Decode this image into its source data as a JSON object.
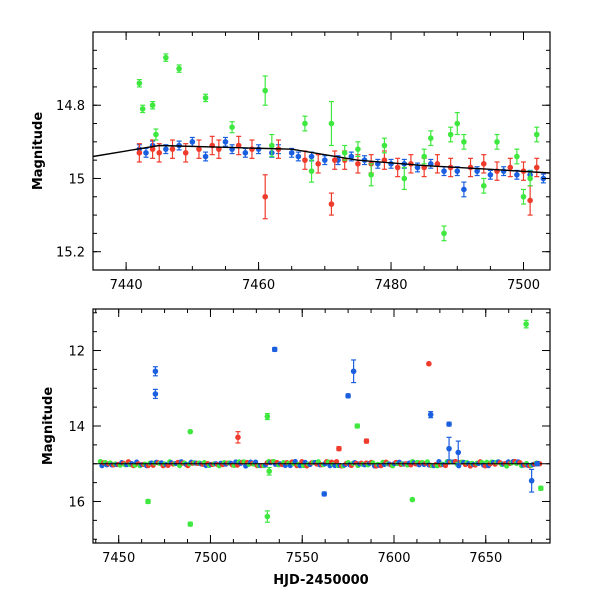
{
  "chart_data": [
    {
      "type": "scatter",
      "panel": "top",
      "xlabel": "",
      "ylabel": "Magnitude",
      "xlim": [
        7435,
        7504
      ],
      "ylim": [
        15.25,
        14.6
      ],
      "y_inverted": true,
      "x_ticks": [
        7440,
        7460,
        7480,
        7500
      ],
      "x_tick_labels": [
        "7440",
        "7460",
        "7480",
        "7500"
      ],
      "y_ticks": [
        14.8,
        15,
        15.2
      ],
      "y_tick_labels": [
        "14.8",
        "15",
        "15.2"
      ],
      "grid": false,
      "trend_line": {
        "x": [
          7435,
          7445,
          7455,
          7465,
          7475,
          7485,
          7495,
          7504
        ],
        "y": [
          14.94,
          14.91,
          14.915,
          14.92,
          14.95,
          14.965,
          14.975,
          14.985
        ]
      },
      "series": [
        {
          "color": "#1a5fe0",
          "points": [
            {
              "x": 7442,
              "y": 14.92,
              "err": 0.012
            },
            {
              "x": 7443,
              "y": 14.93,
              "err": 0.012
            },
            {
              "x": 7444,
              "y": 14.91,
              "err": 0.012
            },
            {
              "x": 7446,
              "y": 14.92,
              "err": 0.012
            },
            {
              "x": 7448,
              "y": 14.91,
              "err": 0.012
            },
            {
              "x": 7450,
              "y": 14.9,
              "err": 0.012
            },
            {
              "x": 7452,
              "y": 14.94,
              "err": 0.012
            },
            {
              "x": 7455,
              "y": 14.9,
              "err": 0.012
            },
            {
              "x": 7456,
              "y": 14.92,
              "err": 0.012
            },
            {
              "x": 7458,
              "y": 14.93,
              "err": 0.012
            },
            {
              "x": 7460,
              "y": 14.92,
              "err": 0.012
            },
            {
              "x": 7462,
              "y": 14.93,
              "err": 0.012
            },
            {
              "x": 7463,
              "y": 14.92,
              "err": 0.012
            },
            {
              "x": 7465,
              "y": 14.93,
              "err": 0.012
            },
            {
              "x": 7466,
              "y": 14.94,
              "err": 0.012
            },
            {
              "x": 7468,
              "y": 14.94,
              "err": 0.012
            },
            {
              "x": 7470,
              "y": 14.95,
              "err": 0.012
            },
            {
              "x": 7472,
              "y": 14.95,
              "err": 0.012
            },
            {
              "x": 7474,
              "y": 14.94,
              "err": 0.012
            },
            {
              "x": 7476,
              "y": 14.95,
              "err": 0.012
            },
            {
              "x": 7478,
              "y": 14.96,
              "err": 0.012
            },
            {
              "x": 7480,
              "y": 14.96,
              "err": 0.012
            },
            {
              "x": 7482,
              "y": 14.96,
              "err": 0.012
            },
            {
              "x": 7484,
              "y": 14.97,
              "err": 0.012
            },
            {
              "x": 7486,
              "y": 14.96,
              "err": 0.012
            },
            {
              "x": 7488,
              "y": 14.98,
              "err": 0.012
            },
            {
              "x": 7490,
              "y": 14.98,
              "err": 0.012
            },
            {
              "x": 7491,
              "y": 15.03,
              "err": 0.02
            },
            {
              "x": 7493,
              "y": 14.98,
              "err": 0.012
            },
            {
              "x": 7495,
              "y": 14.99,
              "err": 0.012
            },
            {
              "x": 7497,
              "y": 14.98,
              "err": 0.012
            },
            {
              "x": 7499,
              "y": 14.99,
              "err": 0.012
            },
            {
              "x": 7501,
              "y": 14.99,
              "err": 0.012
            },
            {
              "x": 7503,
              "y": 15.0,
              "err": 0.012
            }
          ]
        },
        {
          "color": "#ef3b2c",
          "points": [
            {
              "x": 7442,
              "y": 14.93,
              "err": 0.025
            },
            {
              "x": 7444,
              "y": 14.92,
              "err": 0.025
            },
            {
              "x": 7445,
              "y": 14.93,
              "err": 0.025
            },
            {
              "x": 7447,
              "y": 14.92,
              "err": 0.025
            },
            {
              "x": 7449,
              "y": 14.93,
              "err": 0.025
            },
            {
              "x": 7451,
              "y": 14.92,
              "err": 0.025
            },
            {
              "x": 7453,
              "y": 14.91,
              "err": 0.025
            },
            {
              "x": 7454,
              "y": 14.92,
              "err": 0.025
            },
            {
              "x": 7457,
              "y": 14.91,
              "err": 0.025
            },
            {
              "x": 7459,
              "y": 14.92,
              "err": 0.025
            },
            {
              "x": 7461,
              "y": 15.05,
              "err": 0.06
            },
            {
              "x": 7463,
              "y": 14.92,
              "err": 0.025
            },
            {
              "x": 7467,
              "y": 14.95,
              "err": 0.025
            },
            {
              "x": 7469,
              "y": 14.96,
              "err": 0.025
            },
            {
              "x": 7471,
              "y": 15.07,
              "err": 0.03
            },
            {
              "x": 7471.5,
              "y": 14.95,
              "err": 0.025
            },
            {
              "x": 7473,
              "y": 14.95,
              "err": 0.025
            },
            {
              "x": 7475,
              "y": 14.96,
              "err": 0.025
            },
            {
              "x": 7477,
              "y": 14.96,
              "err": 0.025
            },
            {
              "x": 7479,
              "y": 14.95,
              "err": 0.025
            },
            {
              "x": 7481,
              "y": 14.97,
              "err": 0.025
            },
            {
              "x": 7483,
              "y": 14.96,
              "err": 0.025
            },
            {
              "x": 7485,
              "y": 14.97,
              "err": 0.025
            },
            {
              "x": 7487,
              "y": 14.96,
              "err": 0.025
            },
            {
              "x": 7489,
              "y": 14.97,
              "err": 0.025
            },
            {
              "x": 7492,
              "y": 14.97,
              "err": 0.025
            },
            {
              "x": 7494,
              "y": 14.96,
              "err": 0.025
            },
            {
              "x": 7496,
              "y": 14.98,
              "err": 0.025
            },
            {
              "x": 7498,
              "y": 14.97,
              "err": 0.025
            },
            {
              "x": 7500,
              "y": 14.98,
              "err": 0.025
            },
            {
              "x": 7501,
              "y": 15.06,
              "err": 0.04
            },
            {
              "x": 7502,
              "y": 14.97,
              "err": 0.025
            }
          ]
        },
        {
          "color": "#3ee83e",
          "points": [
            {
              "x": 7442,
              "y": 14.74,
              "err": 0.01
            },
            {
              "x": 7442.5,
              "y": 14.81,
              "err": 0.01
            },
            {
              "x": 7444,
              "y": 14.8,
              "err": 0.01
            },
            {
              "x": 7444.5,
              "y": 14.88,
              "err": 0.015
            },
            {
              "x": 7446,
              "y": 14.67,
              "err": 0.01
            },
            {
              "x": 7448,
              "y": 14.7,
              "err": 0.01
            },
            {
              "x": 7452,
              "y": 14.78,
              "err": 0.01
            },
            {
              "x": 7456,
              "y": 14.86,
              "err": 0.015
            },
            {
              "x": 7461,
              "y": 14.76,
              "err": 0.04
            },
            {
              "x": 7462,
              "y": 14.91,
              "err": 0.03
            },
            {
              "x": 7467,
              "y": 14.85,
              "err": 0.02
            },
            {
              "x": 7468,
              "y": 14.98,
              "err": 0.03
            },
            {
              "x": 7471,
              "y": 14.85,
              "err": 0.06
            },
            {
              "x": 7473,
              "y": 14.93,
              "err": 0.02
            },
            {
              "x": 7475,
              "y": 14.92,
              "err": 0.02
            },
            {
              "x": 7477,
              "y": 14.99,
              "err": 0.03
            },
            {
              "x": 7479,
              "y": 14.91,
              "err": 0.02
            },
            {
              "x": 7482,
              "y": 15.0,
              "err": 0.03
            },
            {
              "x": 7485,
              "y": 14.94,
              "err": 0.02
            },
            {
              "x": 7486,
              "y": 14.89,
              "err": 0.02
            },
            {
              "x": 7488,
              "y": 15.15,
              "err": 0.02
            },
            {
              "x": 7489,
              "y": 14.88,
              "err": 0.02
            },
            {
              "x": 7490,
              "y": 14.85,
              "err": 0.03
            },
            {
              "x": 7491,
              "y": 14.9,
              "err": 0.02
            },
            {
              "x": 7494,
              "y": 15.02,
              "err": 0.02
            },
            {
              "x": 7496,
              "y": 14.9,
              "err": 0.02
            },
            {
              "x": 7499,
              "y": 14.94,
              "err": 0.02
            },
            {
              "x": 7500,
              "y": 15.05,
              "err": 0.02
            },
            {
              "x": 7501,
              "y": 15.0,
              "err": 0.02
            },
            {
              "x": 7502,
              "y": 14.88,
              "err": 0.02
            }
          ]
        }
      ]
    },
    {
      "type": "scatter",
      "panel": "bottom",
      "xlabel": "HJD-2450000",
      "ylabel": "Magnitude",
      "xlim": [
        7436,
        7685
      ],
      "ylim": [
        17.1,
        10.9
      ],
      "y_inverted": true,
      "x_ticks": [
        7450,
        7500,
        7550,
        7600,
        7650
      ],
      "x_tick_labels": [
        "7450",
        "7500",
        "7550",
        "7600",
        "7650"
      ],
      "y_ticks": [
        12,
        14,
        16
      ],
      "y_tick_labels": [
        "12",
        "14",
        "16"
      ],
      "grid": false,
      "reference_line": 15.0,
      "series": [
        {
          "color": "#1a5fe0",
          "points": [
            {
              "x": 7470,
              "y": 12.55,
              "err": 0.12
            },
            {
              "x": 7470,
              "y": 13.15,
              "err": 0.12
            },
            {
              "x": 7535,
              "y": 11.97,
              "err": 0.05
            },
            {
              "x": 7562,
              "y": 15.8,
              "err": 0.05
            },
            {
              "x": 7575,
              "y": 13.2,
              "err": 0.05
            },
            {
              "x": 7578,
              "y": 12.55,
              "err": 0.3
            },
            {
              "x": 7620,
              "y": 13.7,
              "err": 0.08
            },
            {
              "x": 7630,
              "y": 13.95,
              "err": 0.05
            },
            {
              "x": 7630,
              "y": 14.6,
              "err": 0.3
            },
            {
              "x": 7635,
              "y": 14.7,
              "err": 0.3
            },
            {
              "x": 7675,
              "y": 15.45,
              "err": 0.3
            },
            {
              "x": 7678,
              "y": 15.0,
              "err": 0.05
            }
          ]
        },
        {
          "color": "#ef3b2c",
          "points": [
            {
              "x": 7515,
              "y": 14.3,
              "err": 0.15
            },
            {
              "x": 7570,
              "y": 14.6,
              "err": 0.05
            },
            {
              "x": 7585,
              "y": 14.4,
              "err": 0.05
            },
            {
              "x": 7619,
              "y": 12.35,
              "err": 0.0
            }
          ]
        },
        {
          "color": "#3ee83e",
          "points": [
            {
              "x": 7466,
              "y": 16.0,
              "err": 0.05
            },
            {
              "x": 7489,
              "y": 14.15,
              "err": 0.0
            },
            {
              "x": 7489,
              "y": 16.6,
              "err": 0.05
            },
            {
              "x": 7531,
              "y": 13.75,
              "err": 0.08
            },
            {
              "x": 7531,
              "y": 16.4,
              "err": 0.15
            },
            {
              "x": 7532,
              "y": 15.2,
              "err": 0.1
            },
            {
              "x": 7580,
              "y": 14.0,
              "err": 0.05
            },
            {
              "x": 7610,
              "y": 15.95,
              "err": 0.0
            },
            {
              "x": 7672,
              "y": 11.3,
              "err": 0.1
            },
            {
              "x": 7680,
              "y": 15.65,
              "err": 0.05
            }
          ]
        }
      ],
      "band": {
        "x_start": 7440,
        "x_end": 7680,
        "y_center": 15.0
      }
    }
  ]
}
